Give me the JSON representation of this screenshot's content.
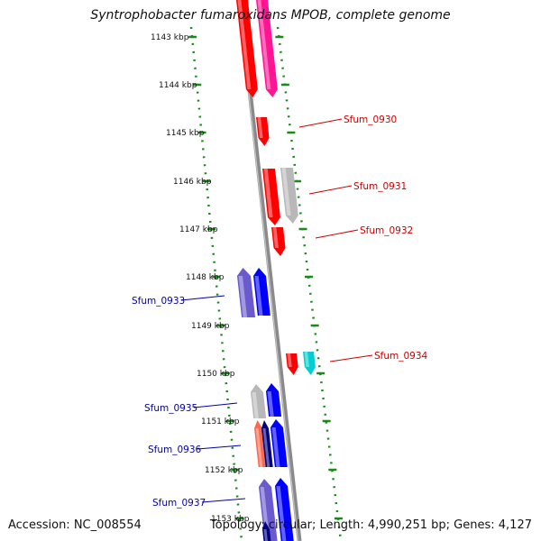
{
  "title": "Syntrophobacter fumaroxidans MPOB, complete genome",
  "footer": {
    "accession": "Accession: NC_008554",
    "summary": "Topology: circular; Length: 4,990,251 bp; Genes: 4,127"
  },
  "colors": {
    "backbone": "#8a8a8a",
    "ruler": "#1b8a1b",
    "forward_label": "#cc0000",
    "reverse_label": "#0000aa"
  },
  "scale_ticks": [
    "1143 kbp",
    "1144 kbp",
    "1145 kbp",
    "1146 kbp",
    "1147 kbp",
    "1148 kbp",
    "1149 kbp",
    "1150 kbp",
    "1151 kbp",
    "1152 kbp",
    "1153 kbp"
  ],
  "gene_labels": [
    {
      "text": "Sfum_0930",
      "strand": "forward"
    },
    {
      "text": "Sfum_0931",
      "strand": "forward"
    },
    {
      "text": "Sfum_0932",
      "strand": "forward"
    },
    {
      "text": "Sfum_0933",
      "strand": "reverse"
    },
    {
      "text": "Sfum_0934",
      "strand": "forward"
    },
    {
      "text": "Sfum_0935",
      "strand": "reverse"
    },
    {
      "text": "Sfum_0936",
      "strand": "reverse"
    },
    {
      "text": "Sfum_0937",
      "strand": "reverse"
    }
  ],
  "features": [
    {
      "name": "fwd-gene-top-1",
      "color": "#ff0000",
      "strand": "forward"
    },
    {
      "name": "fwd-gene-top-2",
      "color": "#ff1493",
      "strand": "forward"
    },
    {
      "name": "fwd-gene-sfum0930",
      "color": "#ff0000",
      "strand": "forward"
    },
    {
      "name": "fwd-gene-sfum0931",
      "color": "#ff0000",
      "strand": "forward"
    },
    {
      "name": "fwd-gene-grey-1",
      "color": "#b8b8b8",
      "strand": "forward"
    },
    {
      "name": "fwd-gene-sfum0932",
      "color": "#ff0000",
      "strand": "forward"
    },
    {
      "name": "rev-gene-sfum0933-a",
      "color": "#6a5acd",
      "strand": "reverse"
    },
    {
      "name": "rev-gene-sfum0933-b",
      "color": "#0000ff",
      "strand": "reverse"
    },
    {
      "name": "fwd-gene-sfum0934-a",
      "color": "#ff0000",
      "strand": "forward"
    },
    {
      "name": "fwd-gene-sfum0934-b",
      "color": "#00ced1",
      "strand": "forward"
    },
    {
      "name": "rev-gene-grey-2",
      "color": "#b8b8b8",
      "strand": "reverse"
    },
    {
      "name": "rev-gene-sfum0935",
      "color": "#0000ff",
      "strand": "reverse"
    },
    {
      "name": "rev-gene-salmon",
      "color": "#fa6a50",
      "strand": "reverse"
    },
    {
      "name": "rev-gene-navy",
      "color": "#000080",
      "strand": "reverse"
    },
    {
      "name": "rev-gene-sfum0936",
      "color": "#0000ff",
      "strand": "reverse"
    },
    {
      "name": "rev-gene-sfum0937-a",
      "color": "#6a5acd",
      "strand": "reverse"
    },
    {
      "name": "rev-gene-sfum0937-b",
      "color": "#0000ff",
      "strand": "reverse"
    },
    {
      "name": "rev-gene-navy-2",
      "color": "#000080",
      "strand": "reverse"
    }
  ]
}
